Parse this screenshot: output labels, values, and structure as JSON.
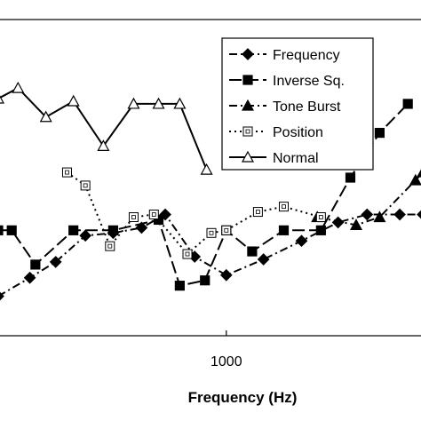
{
  "chart_data": {
    "type": "line",
    "xlabel": "Frequency (Hz)",
    "ylabel": "",
    "title": "",
    "x_scale": "log",
    "x_ticks": [
      1000
    ],
    "x_tick_labels": [
      "1000"
    ],
    "xlim": [
      200,
      4000
    ],
    "ylim": [
      0,
      12
    ],
    "grid": false,
    "legend_position": "top-right",
    "series": [
      {
        "name": "Frequency",
        "marker": "diamond",
        "dash": "dashdot",
        "color": "#000000",
        "points": [
          [
            200,
            1.5
          ],
          [
            250,
            2.2
          ],
          [
            300,
            2.8
          ],
          [
            370,
            3.8
          ],
          [
            450,
            3.9
          ],
          [
            550,
            4.1
          ],
          [
            650,
            4.6
          ],
          [
            800,
            3.0
          ],
          [
            1000,
            2.3
          ],
          [
            1300,
            2.9
          ],
          [
            1700,
            3.6
          ],
          [
            2200,
            4.3
          ],
          [
            2700,
            4.6
          ],
          [
            3400,
            4.6
          ],
          [
            4000,
            4.6
          ]
        ]
      },
      {
        "name": "Inverse Sq.",
        "marker": "square",
        "dash": "longdash",
        "color": "#000000",
        "points": [
          [
            200,
            4.0
          ],
          [
            220,
            4.0
          ],
          [
            260,
            2.7
          ],
          [
            340,
            4.0
          ],
          [
            450,
            4.0
          ],
          [
            620,
            4.4
          ],
          [
            720,
            1.9
          ],
          [
            860,
            2.1
          ],
          [
            1000,
            4.0
          ],
          [
            1200,
            3.2
          ],
          [
            1500,
            4.0
          ],
          [
            1950,
            4.0
          ],
          [
            2400,
            6.0
          ],
          [
            2950,
            7.7
          ],
          [
            3600,
            8.8
          ]
        ]
      },
      {
        "name": "Tone Burst",
        "marker": "triangle",
        "dash": "dashdot",
        "color": "#000000",
        "points": [
          [
            1900,
            4.5
          ],
          [
            2500,
            4.2
          ],
          [
            2950,
            4.5
          ],
          [
            3800,
            5.9
          ],
          [
            4000,
            6.2
          ]
        ]
      },
      {
        "name": "Position",
        "marker": "square-open",
        "dash": "dotted",
        "color": "#000000",
        "points": [
          [
            325,
            6.2
          ],
          [
            370,
            5.7
          ],
          [
            440,
            3.4
          ],
          [
            520,
            4.5
          ],
          [
            600,
            4.6
          ],
          [
            760,
            3.1
          ],
          [
            900,
            3.9
          ],
          [
            1000,
            4.0
          ],
          [
            1250,
            4.7
          ],
          [
            1500,
            4.9
          ],
          [
            1950,
            4.5
          ]
        ]
      },
      {
        "name": "Normal",
        "marker": "triangle-open",
        "dash": "solid",
        "color": "#000000",
        "points": [
          [
            200,
            9.0
          ],
          [
            230,
            9.4
          ],
          [
            280,
            8.3
          ],
          [
            340,
            8.9
          ],
          [
            420,
            7.2
          ],
          [
            520,
            8.8
          ],
          [
            620,
            8.8
          ],
          [
            720,
            8.8
          ],
          [
            870,
            6.3
          ]
        ]
      }
    ]
  }
}
